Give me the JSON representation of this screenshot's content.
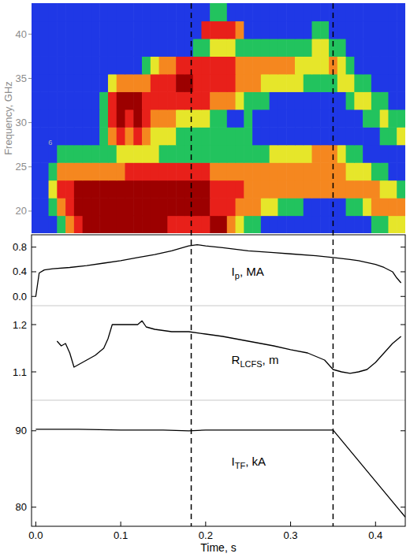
{
  "chart_data": {
    "type": "multi",
    "xlabel": "Time, s",
    "xlim": [
      -0.005,
      0.435
    ],
    "xticks": [
      {
        "value": 0,
        "label": "0.0"
      },
      0.1,
      0.2,
      0.3,
      0.4
    ],
    "vlines": [
      0.183,
      0.35
    ],
    "panels": [
      {
        "type": "heatmap",
        "ylabel": "Frequency, GHz",
        "ylim": [
          17.5,
          43.5
        ],
        "yticks": [
          20,
          25,
          30,
          35,
          40
        ],
        "tick_labels": "y",
        "x": [
          0,
          0.01,
          0.02,
          0.03,
          0.04,
          0.05,
          0.06,
          0.07,
          0.08,
          0.09,
          0.1,
          0.11,
          0.12,
          0.13,
          0.14,
          0.15,
          0.16,
          0.17,
          0.18,
          0.19,
          0.2,
          0.21,
          0.22,
          0.23,
          0.24,
          0.25,
          0.26,
          0.27,
          0.28,
          0.29,
          0.3,
          0.31,
          0.32,
          0.33,
          0.34,
          0.35,
          0.36,
          0.37,
          0.38,
          0.39,
          0.4,
          0.41,
          0.42,
          0.43
        ],
        "y": [
          18.5,
          20.5,
          22.5,
          24.5,
          26.5,
          28.5,
          30.5,
          32.5,
          34.5,
          36.5,
          38.5,
          40.5,
          42.5
        ],
        "z": [
          [
            0,
            0,
            0,
            1,
            3,
            4,
            5,
            5,
            5,
            5,
            5,
            5,
            5,
            5,
            5,
            5,
            4,
            4,
            4,
            4,
            4,
            5,
            5,
            3,
            2,
            1,
            1,
            0,
            0,
            0,
            0,
            0,
            0,
            0,
            0,
            0,
            0,
            0,
            0,
            0,
            1,
            1,
            2,
            2
          ],
          [
            0,
            0,
            1,
            3,
            4,
            5,
            5,
            5,
            5,
            5,
            5,
            5,
            5,
            5,
            5,
            5,
            5,
            5,
            5,
            5,
            5,
            4,
            4,
            4,
            3,
            3,
            3,
            2,
            2,
            1,
            1,
            1,
            0,
            0,
            0,
            0,
            0,
            1,
            1,
            2,
            3,
            3,
            3,
            3
          ],
          [
            0,
            0,
            2,
            4,
            4,
            5,
            5,
            5,
            5,
            5,
            5,
            5,
            5,
            5,
            5,
            5,
            5,
            5,
            5,
            5,
            5,
            4,
            4,
            4,
            4,
            3,
            3,
            3,
            3,
            3,
            3,
            3,
            3,
            3,
            3,
            3,
            3,
            3,
            3,
            3,
            3,
            2,
            2,
            1
          ],
          [
            0,
            0,
            1,
            3,
            3,
            3,
            3,
            3,
            3,
            3,
            3,
            4,
            4,
            4,
            4,
            4,
            4,
            4,
            4,
            4,
            4,
            3,
            3,
            3,
            3,
            3,
            3,
            3,
            3,
            3,
            3,
            3,
            3,
            3,
            3,
            3,
            3,
            2,
            2,
            2,
            1,
            1,
            0,
            0
          ],
          [
            0,
            0,
            0,
            1,
            1,
            1,
            1,
            1,
            1,
            1,
            2,
            2,
            2,
            2,
            2,
            1,
            1,
            1,
            1,
            1,
            1,
            1,
            1,
            1,
            1,
            1,
            1,
            1,
            2,
            2,
            2,
            2,
            2,
            3,
            3,
            3,
            2,
            1,
            1,
            0,
            0,
            0,
            0,
            0
          ],
          [
            0,
            0,
            0,
            0,
            0,
            0,
            0,
            0,
            1,
            3,
            4,
            3,
            4,
            3,
            2,
            2,
            2,
            1,
            1,
            1,
            1,
            1,
            1,
            1,
            1,
            1,
            0,
            0,
            0,
            0,
            0,
            0,
            0,
            0,
            0,
            0,
            0,
            0,
            0,
            0,
            0,
            1,
            1,
            2
          ],
          [
            0,
            0,
            0,
            0,
            0,
            0,
            0,
            0,
            1,
            4,
            5,
            4,
            5,
            4,
            3,
            3,
            3,
            2,
            2,
            2,
            2,
            1,
            1,
            0,
            0,
            1,
            0,
            0,
            0,
            0,
            0,
            0,
            0,
            0,
            0,
            0,
            0,
            0,
            0,
            1,
            1,
            2,
            1,
            1
          ],
          [
            0,
            0,
            0,
            0,
            0,
            0,
            0,
            0,
            1,
            4,
            5,
            5,
            5,
            4,
            4,
            4,
            4,
            4,
            4,
            4,
            4,
            3,
            3,
            3,
            2,
            1,
            1,
            1,
            0,
            0,
            0,
            0,
            0,
            0,
            0,
            0,
            0,
            1,
            2,
            2,
            1,
            1,
            0,
            0
          ],
          [
            0,
            0,
            0,
            0,
            0,
            0,
            0,
            0,
            0,
            2,
            3,
            3,
            3,
            3,
            4,
            4,
            4,
            5,
            5,
            4,
            4,
            4,
            4,
            4,
            3,
            3,
            3,
            2,
            2,
            2,
            2,
            2,
            1,
            1,
            1,
            1,
            2,
            2,
            1,
            1,
            0,
            0,
            0,
            0
          ],
          [
            0,
            0,
            0,
            0,
            0,
            0,
            0,
            0,
            0,
            0,
            0,
            0,
            0,
            1,
            2,
            3,
            3,
            4,
            4,
            4,
            4,
            4,
            4,
            4,
            3,
            3,
            3,
            3,
            3,
            3,
            3,
            2,
            2,
            2,
            2,
            3,
            2,
            1,
            0,
            0,
            0,
            0,
            0,
            0
          ],
          [
            0,
            0,
            0,
            0,
            0,
            0,
            0,
            0,
            0,
            0,
            0,
            0,
            0,
            0,
            0,
            0,
            0,
            0,
            0,
            1,
            1,
            2,
            2,
            2,
            1,
            1,
            1,
            1,
            1,
            1,
            1,
            1,
            1,
            2,
            2,
            1,
            1,
            0,
            0,
            0,
            0,
            0,
            0,
            0
          ],
          [
            0,
            0,
            0,
            0,
            0,
            0,
            0,
            0,
            0,
            0,
            0,
            0,
            0,
            0,
            0,
            0,
            0,
            0,
            0,
            0,
            4,
            4,
            4,
            4,
            3,
            0,
            0,
            0,
            0,
            0,
            0,
            0,
            0,
            1,
            1,
            0,
            0,
            0,
            0,
            0,
            0,
            0,
            0,
            0
          ],
          [
            0,
            0,
            0,
            0,
            0,
            0,
            0,
            0,
            0,
            0,
            0,
            0,
            0,
            0,
            0,
            0,
            0,
            0,
            0,
            0,
            0,
            1,
            1,
            0,
            0,
            0,
            0,
            0,
            0,
            0,
            0,
            0,
            0,
            0,
            0,
            0,
            0,
            0,
            0,
            0,
            0,
            0,
            0,
            0
          ]
        ],
        "zlim": [
          0,
          5
        ],
        "colors": [
          "#1f38e6",
          "#22c35e",
          "#e6e62a",
          "#f5871f",
          "#e8201a",
          "#9c0000"
        ],
        "annotations": [
          {
            "text": "6",
            "x": 0.017,
            "y": 27.5
          }
        ]
      },
      {
        "type": "line",
        "label_parts": [
          "I",
          "p",
          ", MA"
        ],
        "ylim": [
          -0.15,
          1.0
        ],
        "yticks": [
          {
            "value": 0,
            "label": "0.0"
          },
          0.4,
          0.8
        ],
        "tick_labels": "y",
        "color": "#000000",
        "x": [
          0,
          0.004,
          0.01,
          0.02,
          0.04,
          0.06,
          0.08,
          0.1,
          0.12,
          0.14,
          0.16,
          0.18,
          0.19,
          0.2,
          0.22,
          0.25,
          0.28,
          0.3,
          0.33,
          0.35,
          0.37,
          0.38,
          0.4,
          0.41,
          0.42,
          0.425,
          0.43
        ],
        "values": [
          0.0,
          0.38,
          0.43,
          0.45,
          0.47,
          0.5,
          0.54,
          0.58,
          0.63,
          0.68,
          0.74,
          0.82,
          0.84,
          0.82,
          0.79,
          0.74,
          0.71,
          0.69,
          0.66,
          0.63,
          0.6,
          0.58,
          0.52,
          0.47,
          0.4,
          0.3,
          0.22
        ]
      },
      {
        "type": "line",
        "label_parts": [
          "R",
          "LCFS",
          ", m"
        ],
        "ylim": [
          1.04,
          1.24
        ],
        "yticks": [
          1.1,
          1.2
        ],
        "tick_labels": "y",
        "color": "#000000",
        "x": [
          0.025,
          0.03,
          0.035,
          0.04,
          0.045,
          0.05,
          0.06,
          0.07,
          0.08,
          0.085,
          0.09,
          0.1,
          0.11,
          0.12,
          0.125,
          0.13,
          0.14,
          0.16,
          0.18,
          0.2,
          0.22,
          0.25,
          0.28,
          0.3,
          0.32,
          0.34,
          0.35,
          0.36,
          0.37,
          0.38,
          0.39,
          0.4,
          0.41,
          0.42,
          0.43
        ],
        "values": [
          1.165,
          1.155,
          1.16,
          1.14,
          1.11,
          1.115,
          1.125,
          1.135,
          1.15,
          1.17,
          1.2,
          1.2,
          1.2,
          1.2,
          1.208,
          1.195,
          1.19,
          1.185,
          1.185,
          1.18,
          1.175,
          1.165,
          1.155,
          1.147,
          1.14,
          1.125,
          1.105,
          1.1,
          1.097,
          1.1,
          1.105,
          1.12,
          1.14,
          1.16,
          1.175
        ]
      },
      {
        "type": "line",
        "label_parts": [
          "I",
          "TF",
          ", kA"
        ],
        "ylim": [
          77.5,
          94
        ],
        "yticks": [
          80,
          90
        ],
        "color": "#000000",
        "x": [
          0,
          0.05,
          0.1,
          0.15,
          0.18,
          0.2,
          0.25,
          0.3,
          0.35,
          0.4,
          0.435
        ],
        "values": [
          90.2,
          90.2,
          90.1,
          90.1,
          90.0,
          90.1,
          90.1,
          90.1,
          90.1,
          83.4,
          78.7
        ]
      }
    ]
  }
}
